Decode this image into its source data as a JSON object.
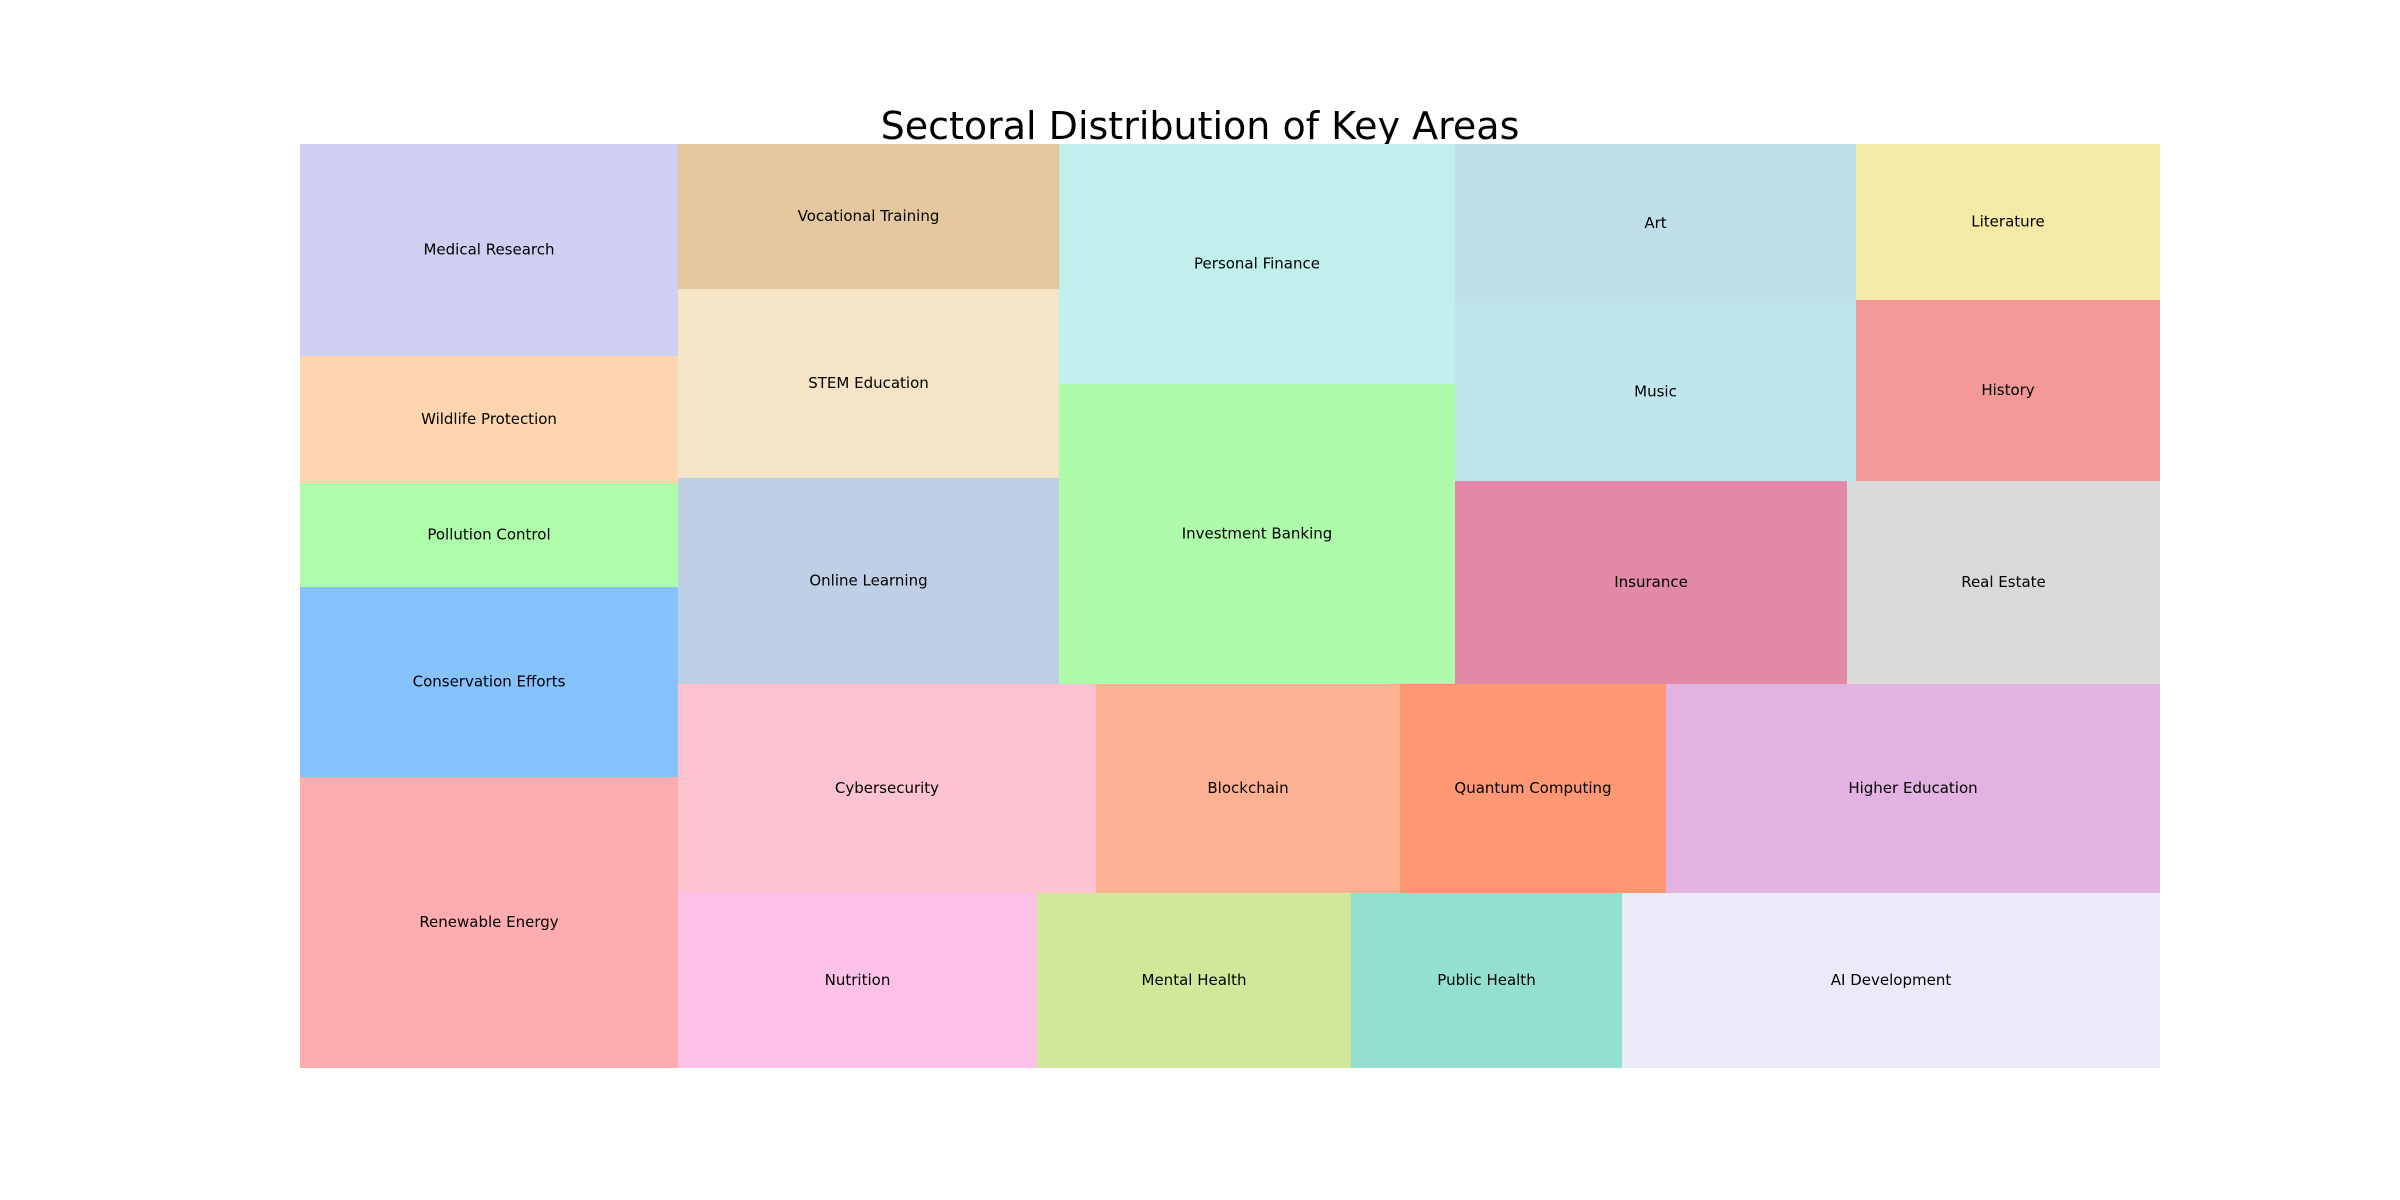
{
  "chart_data": {
    "type": "treemap",
    "title": "Sectoral Distribution of Key Areas",
    "items": [
      {
        "label": "Medical Research",
        "value": 300,
        "color": "#cecff2"
      },
      {
        "label": "Wildlife Protection",
        "value": 180,
        "color": "#fed5ae"
      },
      {
        "label": "Pollution Control",
        "value": 150,
        "color": "#adfdab"
      },
      {
        "label": "Conservation Efforts",
        "value": 270,
        "color": "#86c2fd"
      },
      {
        "label": "Renewable Energy",
        "value": 420,
        "color": "#fdadaf"
      },
      {
        "label": "Vocational Training",
        "value": 210,
        "color": "#e3c79f"
      },
      {
        "label": "STEM Education",
        "value": 270,
        "color": "#f6e4c6"
      },
      {
        "label": "Online Learning",
        "value": 300,
        "color": "#bfcfe5"
      },
      {
        "label": "Personal Finance",
        "value": 360,
        "color": "#c0efee"
      },
      {
        "label": "Investment Banking",
        "value": 450,
        "color": "#adfbab"
      },
      {
        "label": "Art",
        "value": 240,
        "color": "#bedfea"
      },
      {
        "label": "Music",
        "value": 270,
        "color": "#c0e6ed"
      },
      {
        "label": "Literature",
        "value": 180,
        "color": "#f2eaa6"
      },
      {
        "label": "History",
        "value": 210,
        "color": "#f29897"
      },
      {
        "label": "Insurance",
        "value": 300,
        "color": "#e289a7"
      },
      {
        "label": "Real Estate",
        "value": 240,
        "color": "#d9d9d9"
      },
      {
        "label": "Cybersecurity",
        "value": 330,
        "color": "#fec3d1"
      },
      {
        "label": "Blockchain",
        "value": 240,
        "color": "#feb092"
      },
      {
        "label": "Quantum Computing",
        "value": 210,
        "color": "#fe9774"
      },
      {
        "label": "Higher Education",
        "value": 390,
        "color": "#e2b3e2"
      },
      {
        "label": "Nutrition",
        "value": 240,
        "color": "#fdc1e8"
      },
      {
        "label": "Mental Health",
        "value": 210,
        "color": "#d0e89a"
      },
      {
        "label": "Public Health",
        "value": 180,
        "color": "#93e0cf"
      },
      {
        "label": "AI Development",
        "value": 360,
        "color": "#ebeaf9"
      }
    ]
  }
}
